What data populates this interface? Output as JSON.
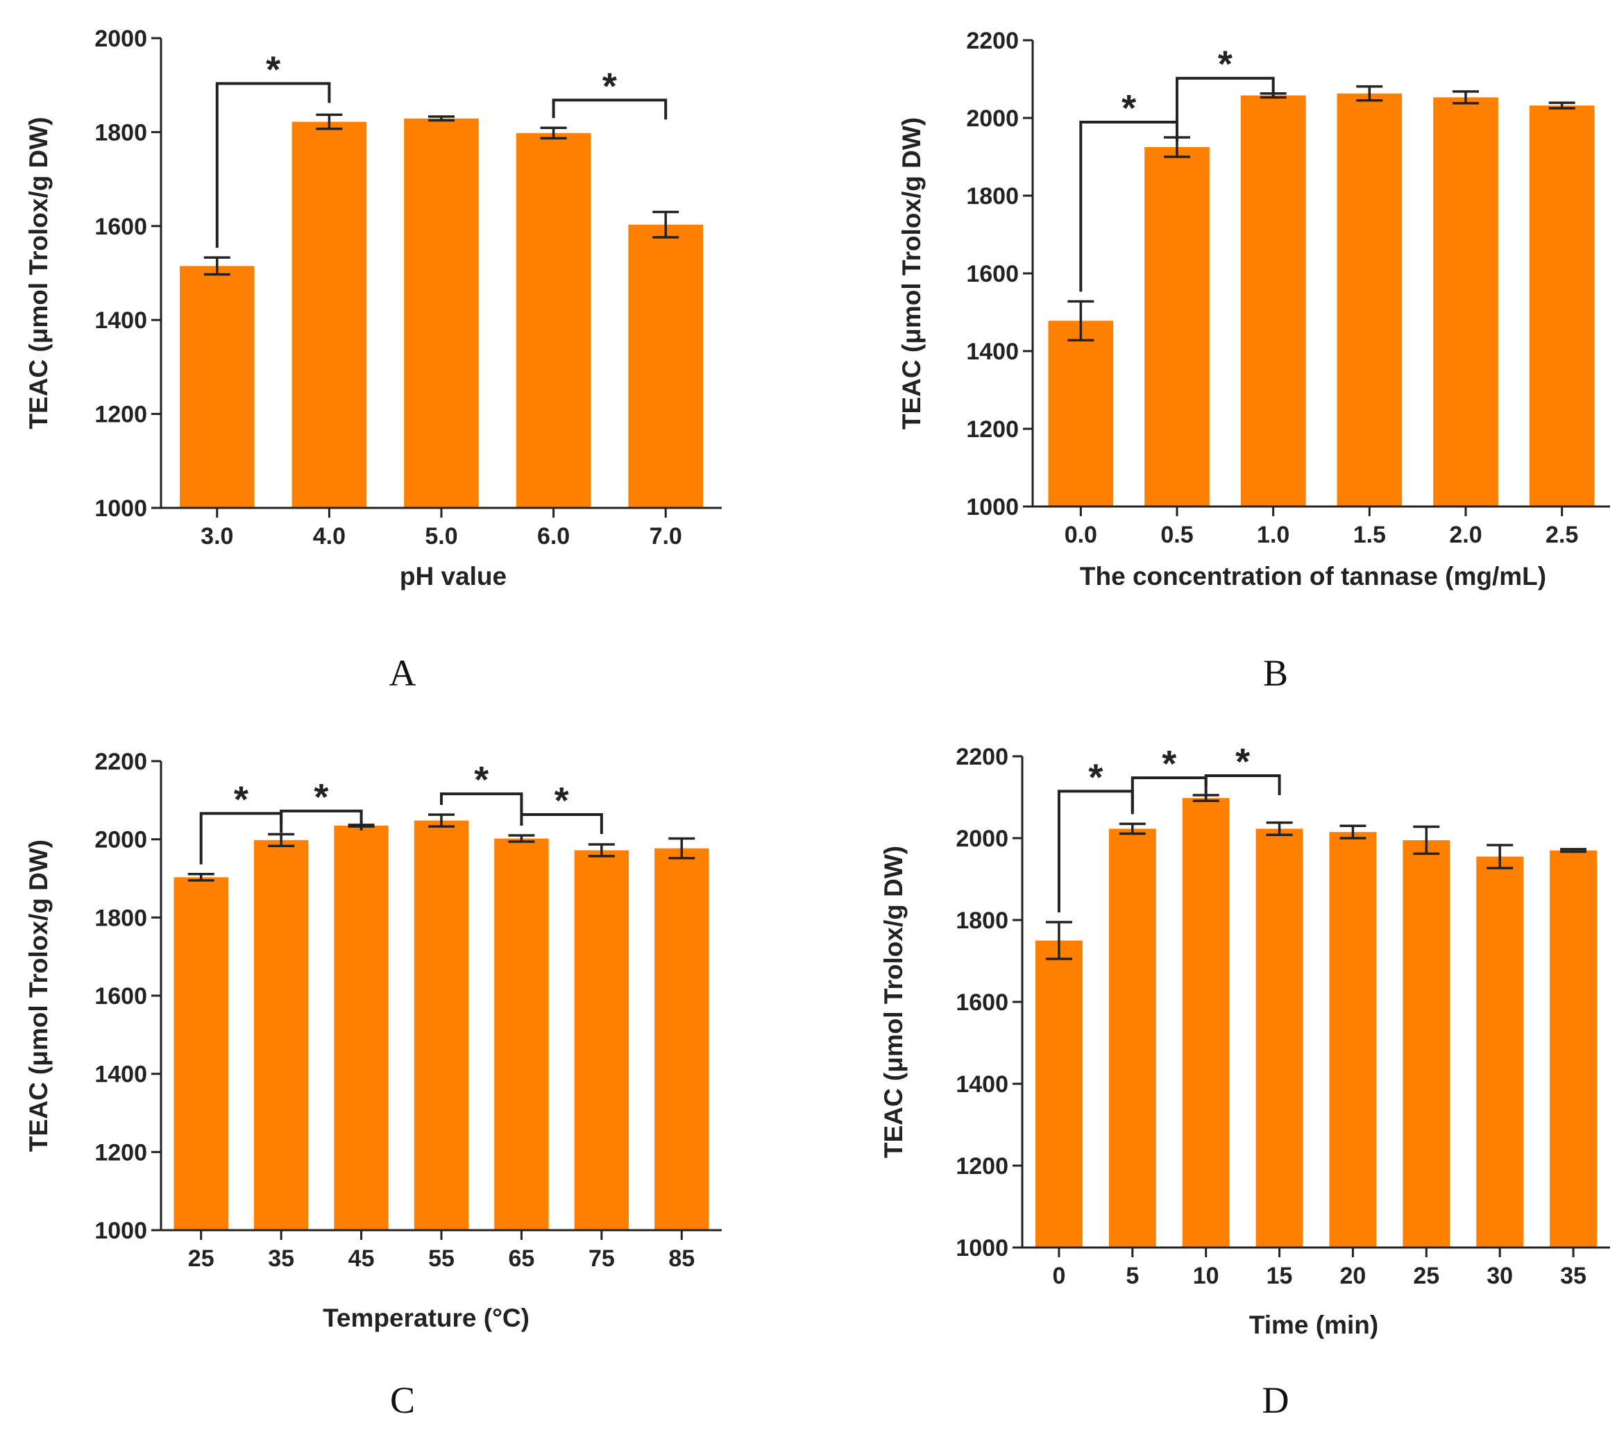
{
  "colors": {
    "bar": "#FF8000",
    "axis": "#222222"
  },
  "chart_data": [
    {
      "panel": "A",
      "type": "bar",
      "categories": [
        "3.0",
        "4.0",
        "5.0",
        "6.0",
        "7.0"
      ],
      "values": [
        1515,
        1822,
        1829,
        1798,
        1603
      ],
      "errors": [
        18,
        15,
        4,
        11,
        27
      ],
      "ylim": [
        1000,
        2000
      ],
      "yticks": [
        1000,
        1200,
        1400,
        1600,
        1800,
        2000
      ],
      "xlabel": "pH value",
      "ylabel": "TEAC (μmol Trolox/g DW)",
      "significance": [
        {
          "from": 0,
          "to": 1,
          "label": "*"
        },
        {
          "from": 3,
          "to": 4,
          "label": "*"
        }
      ]
    },
    {
      "panel": "B",
      "type": "bar",
      "categories": [
        "0.0",
        "0.5",
        "1.0",
        "1.5",
        "2.0",
        "2.5"
      ],
      "values": [
        1478,
        1925,
        2058,
        2063,
        2053,
        2032
      ],
      "errors": [
        50,
        25,
        5,
        18,
        15,
        7
      ],
      "ylim": [
        1000,
        2200
      ],
      "yticks": [
        1000,
        1200,
        1400,
        1600,
        1800,
        2000,
        2200
      ],
      "xlabel": "The concentration of tannase (mg/mL)",
      "ylabel": "TEAC (μmol Trolox/g DW)",
      "significance": [
        {
          "from": 0,
          "to": 1,
          "label": "*"
        },
        {
          "from": 1,
          "to": 2,
          "label": "*"
        }
      ]
    },
    {
      "panel": "C",
      "type": "bar",
      "categories": [
        "25",
        "35",
        "45",
        "55",
        "65",
        "75",
        "85"
      ],
      "values": [
        1903,
        1998,
        2035,
        2048,
        2002,
        1972,
        1977
      ],
      "errors": [
        8,
        15,
        2,
        15,
        8,
        15,
        25
      ],
      "ylim": [
        1000,
        2200
      ],
      "yticks": [
        1000,
        1200,
        1400,
        1600,
        1800,
        2000,
        2200
      ],
      "xlabel": "Temperature (°C)",
      "ylabel": "TEAC (μmol Trolox/g DW)",
      "significance": [
        {
          "from": 0,
          "to": 1,
          "label": "*"
        },
        {
          "from": 1,
          "to": 2,
          "label": "*"
        },
        {
          "from": 3,
          "to": 4,
          "label": "*"
        },
        {
          "from": 4,
          "to": 5,
          "label": "*"
        }
      ]
    },
    {
      "panel": "D",
      "type": "bar",
      "categories": [
        "0",
        "5",
        "10",
        "15",
        "20",
        "25",
        "30",
        "35"
      ],
      "values": [
        1750,
        2023,
        2098,
        2023,
        2015,
        1995,
        1955,
        1970
      ],
      "errors": [
        45,
        12,
        7,
        15,
        15,
        33,
        28,
        3
      ],
      "ylim": [
        1000,
        2200
      ],
      "yticks": [
        1000,
        1200,
        1400,
        1600,
        1800,
        2000,
        2200
      ],
      "xlabel": "Time (min)",
      "ylabel": "TEAC (μmol Trolox/g DW)",
      "significance": [
        {
          "from": 0,
          "to": 1,
          "label": "*"
        },
        {
          "from": 1,
          "to": 2,
          "label": "*"
        },
        {
          "from": 2,
          "to": 3,
          "label": "*"
        }
      ]
    }
  ]
}
